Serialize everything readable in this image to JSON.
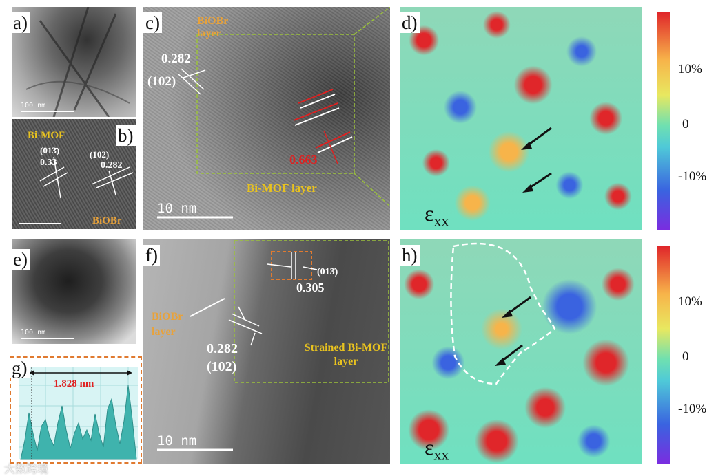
{
  "panel_letters": {
    "a": "a)",
    "b": "b)",
    "c": "c)",
    "d": "d)",
    "e": "e)",
    "f": "f)",
    "g": "g)",
    "h": "h)"
  },
  "panel_a": {
    "scale": "100 nm"
  },
  "panel_b": {
    "bimof": "Bi-MOF",
    "hkl1": "(013̄)",
    "d1": "0.33",
    "hkl2": "(102)",
    "d2": "0.282",
    "biobr": "BiOBr"
  },
  "panel_c": {
    "biobr_layer": "BiOBr layer",
    "d1": "0.282",
    "hkl": "(102)",
    "d2": "0.663",
    "bimof_layer": "Bi-MOF layer",
    "scale": "10 nm"
  },
  "panel_d": {
    "label": "ε",
    "sub": "xx"
  },
  "panel_e": {
    "scale": "100 nm"
  },
  "panel_f": {
    "biobr_layer": "BiOBr layer",
    "d1": "0.282",
    "hkl1": "(102)",
    "hkl2": "(013̄)",
    "d2": "0.305",
    "strained": "Strained Bi-MOF layer",
    "scale": "10 nm"
  },
  "panel_g": {
    "distance": "1.828 nm"
  },
  "panel_h": {
    "label": "ε",
    "sub": "xx"
  },
  "colorbar": {
    "ticks": [
      "10%",
      "0",
      "-10%"
    ],
    "colors": [
      "#e0262a",
      "#f7b44a",
      "#e8e860",
      "#6fe0b0",
      "#4fc9d8",
      "#3a63e0",
      "#7a2de0"
    ]
  },
  "watermark": "大数跨境"
}
